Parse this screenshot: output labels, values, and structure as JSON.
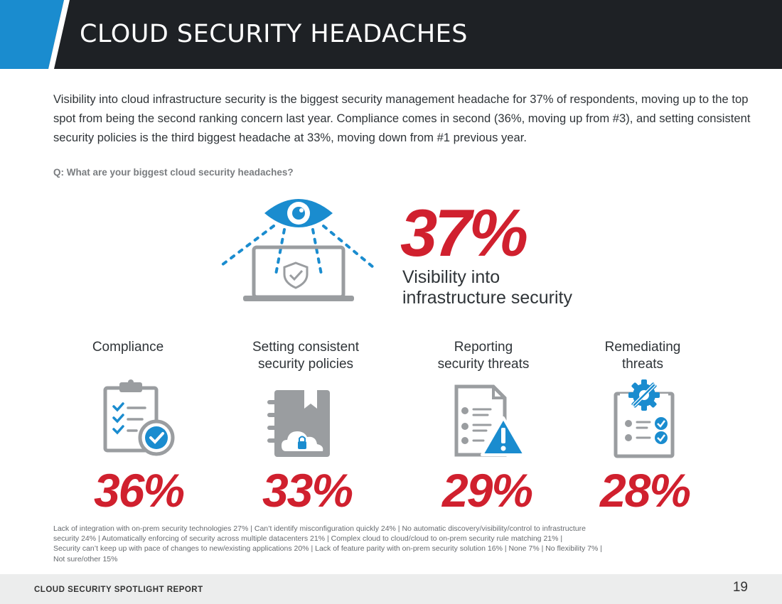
{
  "header": {
    "title": "CLOUD SECURITY HEADACHES"
  },
  "intro": {
    "text": "Visibility into cloud infrastructure security is the biggest security management headache for 37% of respondents, moving up to the top spot from being the second ranking concern last year. Compliance comes in second (36%, moving up from #3), and setting consistent security policies is the third biggest headache at 33%, moving down from #1 previous year."
  },
  "question": "Q: What are your biggest cloud security headaches?",
  "top_item": {
    "percent": "37%",
    "label_line1": "Visibility into",
    "label_line2": "infrastructure security",
    "icon": "eye-laptop-shield-icon"
  },
  "items": [
    {
      "title_line1": "Compliance",
      "title_line2": "",
      "percent": "36%",
      "icon": "clipboard-checklist-icon"
    },
    {
      "title_line1": "Setting consistent",
      "title_line2": "security policies",
      "percent": "33%",
      "icon": "notebook-cloud-lock-icon"
    },
    {
      "title_line1": "Reporting",
      "title_line2": "security threats",
      "percent": "29%",
      "icon": "document-warning-icon"
    },
    {
      "title_line1": "Remediating",
      "title_line2": "threats",
      "percent": "28%",
      "icon": "gear-wrench-checklist-icon"
    }
  ],
  "footnote": {
    "line1": "Lack of integration with on-prem security technologies 27%  |   Can’t identify misconfiguration quickly 24%  |  No automatic discovery/visibility/control to infrastructure",
    "line2": "security 24%   |  Automatically enforcing of security across multiple datacenters 21%  |  Complex cloud to cloud/cloud to on-prem security rule matching 21%  |",
    "line3": "Security can’t keep up with pace of changes to new/existing applications 20%  |  Lack of feature parity with on-prem security solution 16% |  None 7%  |  No flexibility 7%  |",
    "line4": "Not sure/other 15%"
  },
  "footer": {
    "label": "CLOUD SECURITY SPOTLIGHT REPORT",
    "page": "19"
  },
  "colors": {
    "accent_red": "#d0202e",
    "accent_blue": "#1a8ccf",
    "header_bg": "#1e2125",
    "icon_gray": "#9a9da0"
  }
}
